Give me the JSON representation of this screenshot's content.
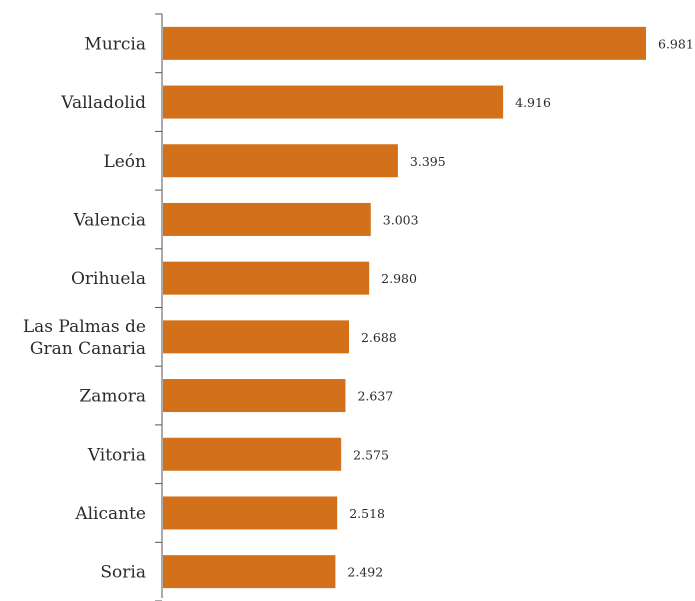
{
  "chart_data": {
    "type": "bar",
    "orientation": "horizontal",
    "categories": [
      [
        "Murcia"
      ],
      [
        "Valladolid"
      ],
      [
        "León"
      ],
      [
        "Valencia"
      ],
      [
        "Orihuela"
      ],
      [
        "Las Palmas de",
        "Gran Canaria"
      ],
      [
        "Zamora"
      ],
      [
        "Vitoria"
      ],
      [
        "Alicante"
      ],
      [
        "Soria"
      ]
    ],
    "values": [
      6.981,
      4.916,
      3.395,
      3.003,
      2.98,
      2.688,
      2.637,
      2.575,
      2.518,
      2.492
    ],
    "value_labels": [
      "6.981",
      "4.916",
      "3.395",
      "3.003",
      "2.980",
      "2.688",
      "2.637",
      "2.575",
      "2.518",
      "2.492"
    ],
    "xlim": [
      0,
      7
    ],
    "bar_color": "#d2711a",
    "title": "",
    "xlabel": "",
    "ylabel": "",
    "grid": false,
    "legend": "none"
  }
}
